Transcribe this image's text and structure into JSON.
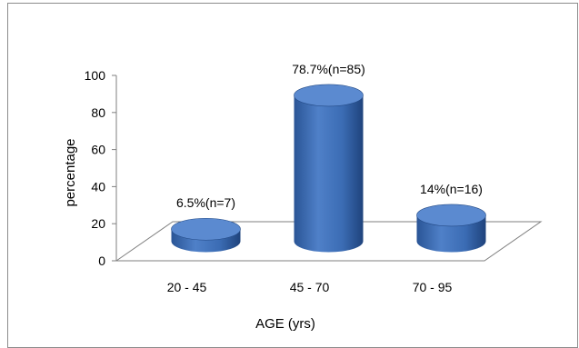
{
  "chart_data": {
    "type": "bar",
    "style": "3d-cylinder",
    "categories": [
      "20 - 45",
      "45 - 70",
      "70 - 95"
    ],
    "values": [
      6.5,
      78.7,
      14
    ],
    "data_labels": [
      "6.5%(n=7)",
      "78.7%(n=85)",
      "14%(n=16)"
    ],
    "xlabel": "AGE (yrs)",
    "ylabel": "percentage",
    "ylim": [
      0,
      100
    ],
    "yticks": [
      0,
      20,
      40,
      60,
      80,
      100
    ],
    "grid": false,
    "legend": "none",
    "colors": {
      "bar": "#3b6cb4",
      "bar_dark": "#234a86",
      "bar_top": "#5b8ad0",
      "axis": "#7f7f7f",
      "frame": "#8c8c8c"
    }
  }
}
